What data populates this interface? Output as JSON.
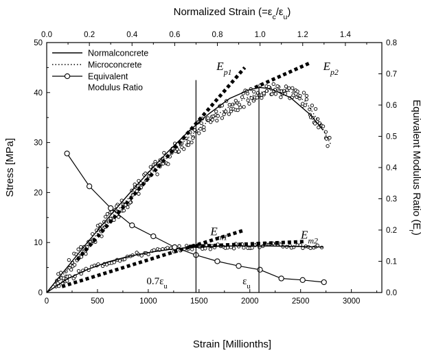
{
  "chart_data": {
    "type": "scatter",
    "title": "",
    "xlabel": "Strain [Millionths]",
    "x2label": "Normalized Strain (=ε_c/ε_u)",
    "ylabel": "Stress [MPa]",
    "y2label": "Equivalent Modulus Ratio (E_r)",
    "xlim": [
      0,
      3300
    ],
    "x2lim": [
      0,
      1.571
    ],
    "ylim": [
      0,
      50
    ],
    "y2lim": [
      0,
      0.8
    ],
    "x_ticks": [
      0,
      500,
      1000,
      1500,
      2000,
      2500,
      3000
    ],
    "x_tick_labels": [
      "0",
      "500",
      "1000",
      "1500",
      "2000",
      "2500",
      "3000"
    ],
    "x2_ticks": [
      0,
      0.2,
      0.4,
      0.6,
      0.8,
      1.0,
      1.2,
      1.4
    ],
    "x2_tick_labels": [
      "0.0",
      "0.2",
      "0.4",
      "0.6",
      "0.8",
      "1.0",
      "1.2",
      "1.4"
    ],
    "y_ticks": [
      0,
      10,
      20,
      30,
      40,
      50
    ],
    "y_tick_labels": [
      "0",
      "10",
      "20",
      "30",
      "40",
      "50"
    ],
    "y2_ticks": [
      0,
      0.1,
      0.2,
      0.3,
      0.4,
      0.5,
      0.6,
      0.7,
      0.8
    ],
    "y2_tick_labels": [
      "0.0",
      "0.1",
      "0.2",
      "0.3",
      "0.4",
      "0.5",
      "0.6",
      "0.7",
      "0.8"
    ],
    "grid": false,
    "legend_position": "top-left",
    "legend": [
      {
        "label": "Normalconcrete",
        "style": "solid"
      },
      {
        "label": "Microconcrete",
        "style": "dotted"
      },
      {
        "label": "Equivalent",
        "label2": "Modulus Ratio",
        "style": "line-circle"
      }
    ],
    "series": [
      {
        "name": "Normalconcrete",
        "axis": "left",
        "style": "solid",
        "x": [
          0,
          200,
          400,
          600,
          800,
          1000,
          1200,
          1400,
          1600,
          1800,
          2000,
          2100,
          2200,
          2400,
          2600,
          2720
        ],
        "y": [
          0,
          5,
          10,
          14.8,
          19.5,
          24,
          28.3,
          32.3,
          35.8,
          38.8,
          40.6,
          41,
          40.8,
          39,
          35.5,
          32.5
        ]
      },
      {
        "name": "Normalconcrete",
        "axis": "left",
        "style": "solid",
        "x": [
          0,
          200,
          400,
          600,
          800,
          1000,
          1200,
          1400,
          1600,
          1800,
          2000,
          2200,
          2500,
          2720
        ],
        "y": [
          0,
          2.7,
          4.6,
          6.1,
          7.2,
          8,
          8.6,
          9,
          9.2,
          9.3,
          9.3,
          9.3,
          9.2,
          9.1
        ]
      },
      {
        "name": "Microconcrete",
        "axis": "left",
        "style": "dotted",
        "x": [
          0,
          150,
          300,
          450,
          600,
          750,
          900,
          1050,
          1200,
          1350,
          1500,
          1650,
          1800,
          1950,
          2100,
          2250,
          2400,
          2550,
          2700,
          2800
        ],
        "y": [
          0,
          3.3,
          7,
          10.6,
          14.2,
          17.6,
          21,
          24.2,
          27.3,
          30.2,
          32.8,
          35.2,
          37.2,
          38.8,
          40,
          40.6,
          40.2,
          38.2,
          33.5,
          29.5
        ]
      },
      {
        "name": "Microconcrete",
        "axis": "left",
        "style": "dotted",
        "x": [
          0,
          150,
          300,
          450,
          600,
          750,
          900,
          1050,
          1200,
          1350,
          1500,
          1650,
          1800,
          2000,
          2200,
          2400,
          2600,
          2720
        ],
        "y": [
          0,
          2,
          3.7,
          5,
          6,
          6.9,
          7.6,
          8.2,
          8.6,
          8.9,
          9.1,
          9.2,
          9.3,
          9.3,
          9.4,
          9.3,
          9.2,
          9.1
        ]
      },
      {
        "name": "Ep1",
        "axis": "left",
        "style": "heavy-dotted",
        "x": [
          300,
          1950
        ],
        "y": [
          6.5,
          45
        ]
      },
      {
        "name": "Ep2",
        "axis": "left",
        "style": "heavy-dotted",
        "x": [
          2050,
          2600
        ],
        "y": [
          41,
          46
        ]
      },
      {
        "name": "Em1",
        "axis": "left",
        "style": "heavy-dotted",
        "x": [
          150,
          1950
        ],
        "y": [
          1.2,
          12.5
        ]
      },
      {
        "name": "Em2",
        "axis": "left",
        "style": "heavy-dotted",
        "x": [
          1400,
          2550
        ],
        "y": [
          9.2,
          10.2
        ]
      },
      {
        "name": "Equivalent Modulus Ratio",
        "axis": "right",
        "style": "line-circle",
        "x": [
          200,
          420,
          630,
          840,
          1050,
          1260,
          1470,
          1680,
          1890,
          2100,
          2310,
          2520,
          2730
        ],
        "y": [
          0.445,
          0.34,
          0.27,
          0.215,
          0.18,
          0.145,
          0.12,
          0.1,
          0.085,
          0.073,
          0.045,
          0.04,
          0.033
        ]
      }
    ],
    "scatter_noise_ranges": {
      "upper_curve_x": [
        100,
        2800
      ],
      "lower_curve_x": [
        100,
        2700
      ]
    },
    "vertical_lines": [
      {
        "x": 1470,
        "y_from": 0,
        "y_to": 42.5,
        "label": "0.7ε_u"
      },
      {
        "x": 2090,
        "y_from": 0,
        "y_to": 41,
        "label": "ε_u"
      }
    ],
    "annotations": [
      {
        "text": "E",
        "sub": "p1",
        "x": 1740,
        "y": 44.5
      },
      {
        "text": "E",
        "sub": "p2",
        "x": 2790,
        "y": 44.5
      },
      {
        "text": "E",
        "sub": "m1",
        "x": 1680,
        "y": 11.5
      },
      {
        "text": "E",
        "sub": "m2",
        "x": 2570,
        "y": 10.8
      }
    ]
  }
}
